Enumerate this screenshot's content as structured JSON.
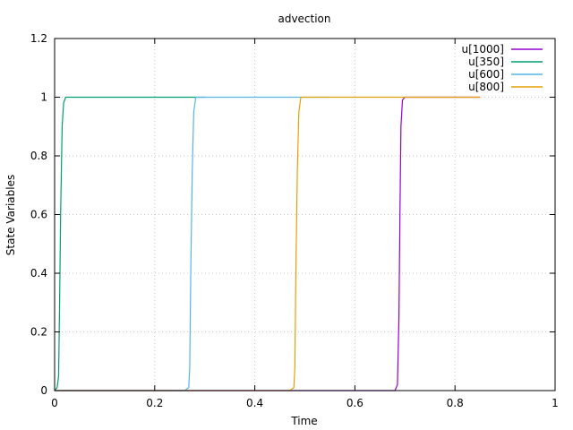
{
  "chart_data": {
    "type": "line",
    "title": "advection",
    "xlabel": "Time",
    "ylabel": "State Variables",
    "xlim": [
      0,
      1
    ],
    "ylim": [
      0,
      1.2
    ],
    "x_ticks": [
      0,
      0.2,
      0.4,
      0.6,
      0.8,
      1
    ],
    "x_tick_labels": [
      "0",
      "0.2",
      "0.4",
      "0.6",
      "0.8",
      "1"
    ],
    "y_ticks": [
      0,
      0.2,
      0.4,
      0.6,
      0.8,
      1,
      1.2
    ],
    "y_tick_labels": [
      "0",
      "0.2",
      "0.4",
      "0.6",
      "0.8",
      "1",
      "1.2"
    ],
    "grid": true,
    "legend_position": "top-right",
    "series": [
      {
        "name": "u[1000]",
        "color": "#9400d3",
        "x": [
          0,
          0.55,
          0.68,
          0.685,
          0.688,
          0.69,
          0.692,
          0.695,
          0.7,
          0.8,
          0.85
        ],
        "y": [
          0,
          0,
          0,
          0.02,
          0.25,
          0.6,
          0.9,
          0.99,
          1,
          1,
          1
        ]
      },
      {
        "name": "u[350]",
        "color": "#009e73",
        "x": [
          0,
          0.005,
          0.008,
          0.01,
          0.012,
          0.015,
          0.018,
          0.022,
          0.03,
          0.3
        ],
        "y": [
          0,
          0.01,
          0.05,
          0.3,
          0.6,
          0.9,
          0.98,
          1,
          1,
          1
        ]
      },
      {
        "name": "u[600]",
        "color": "#56b4e9",
        "x": [
          0,
          0.26,
          0.268,
          0.27,
          0.272,
          0.275,
          0.278,
          0.282,
          0.29,
          0.55
        ],
        "y": [
          0,
          0,
          0.01,
          0.08,
          0.4,
          0.75,
          0.95,
          1,
          1,
          1
        ]
      },
      {
        "name": "u[800]",
        "color": "#e69f00",
        "x": [
          0,
          0.47,
          0.478,
          0.48,
          0.482,
          0.485,
          0.488,
          0.492,
          0.5,
          0.85
        ],
        "y": [
          0,
          0,
          0.01,
          0.08,
          0.4,
          0.75,
          0.95,
          1,
          1,
          1
        ]
      }
    ]
  }
}
